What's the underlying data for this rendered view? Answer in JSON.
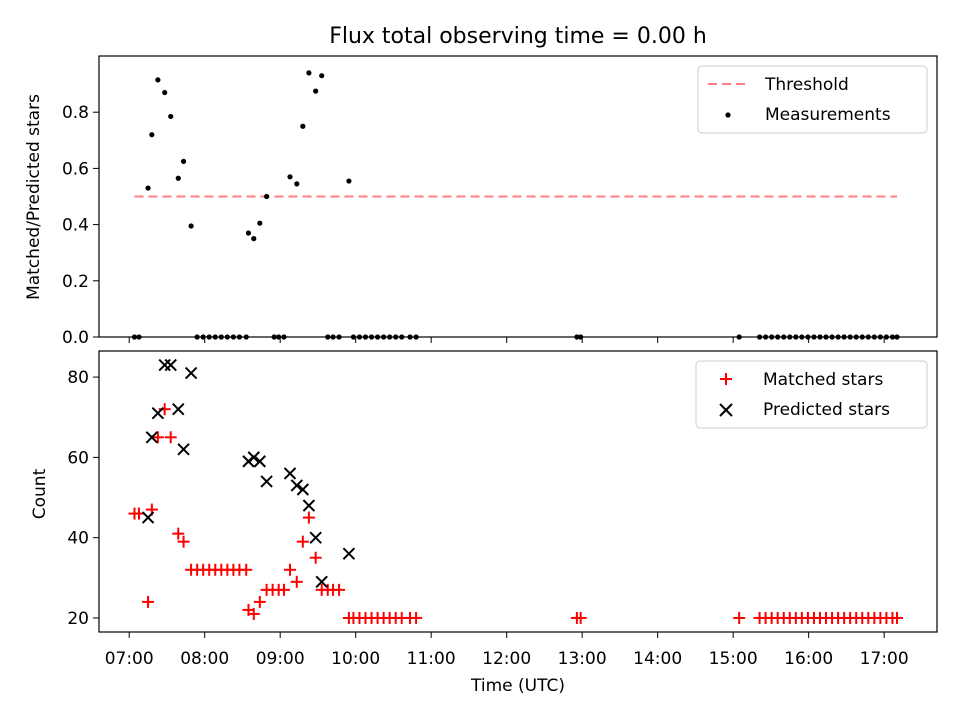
{
  "title": "Flux total observing time = 0.00 h",
  "xlabel": "Time (UTC)",
  "x_ticks": [
    "07:00",
    "08:00",
    "09:00",
    "10:00",
    "11:00",
    "12:00",
    "13:00",
    "14:00",
    "15:00",
    "16:00",
    "17:00"
  ],
  "x_tick_hours": [
    7,
    8,
    9,
    10,
    11,
    12,
    13,
    14,
    15,
    16,
    17
  ],
  "colors": {
    "threshold": "#ff7f7f",
    "measurements": "#000000",
    "matched": "#ff0000",
    "predicted": "#000000"
  },
  "chart_data": [
    {
      "type": "scatter",
      "ylabel": "Matched/Predicted stars",
      "ylim": [
        0,
        1.0
      ],
      "y_ticks": [
        "0.0",
        "0.2",
        "0.4",
        "0.6",
        "0.8"
      ],
      "y_tick_values": [
        0,
        0.2,
        0.4,
        0.6,
        0.8
      ],
      "legend_position": "top-right",
      "threshold": {
        "name": "Threshold",
        "value": 0.5,
        "x_range": [
          7.07,
          17.17
        ]
      },
      "series": [
        {
          "name": "Measurements",
          "marker": "dot",
          "points": [
            [
              7.07,
              0
            ],
            [
              7.13,
              0
            ],
            [
              7.25,
              0.53
            ],
            [
              7.3,
              0.72
            ],
            [
              7.38,
              0.915
            ],
            [
              7.47,
              0.87
            ],
            [
              7.55,
              0.785
            ],
            [
              7.65,
              0.565
            ],
            [
              7.72,
              0.625
            ],
            [
              7.82,
              0.395
            ],
            [
              7.9,
              0
            ],
            [
              7.98,
              0
            ],
            [
              8.06,
              0
            ],
            [
              8.14,
              0
            ],
            [
              8.22,
              0
            ],
            [
              8.3,
              0
            ],
            [
              8.38,
              0
            ],
            [
              8.46,
              0
            ],
            [
              8.55,
              0
            ],
            [
              8.58,
              0.37
            ],
            [
              8.65,
              0.35
            ],
            [
              8.73,
              0.405
            ],
            [
              8.82,
              0.5
            ],
            [
              8.92,
              0
            ],
            [
              8.98,
              0
            ],
            [
              9.05,
              0
            ],
            [
              9.13,
              0.57
            ],
            [
              9.22,
              0.545
            ],
            [
              9.3,
              0.75
            ],
            [
              9.38,
              0.94
            ],
            [
              9.47,
              0.875
            ],
            [
              9.55,
              0.93
            ],
            [
              9.63,
              0
            ],
            [
              9.7,
              0
            ],
            [
              9.78,
              0
            ],
            [
              9.91,
              0.555
            ],
            [
              9.97,
              0
            ],
            [
              10.05,
              0
            ],
            [
              10.13,
              0
            ],
            [
              10.21,
              0
            ],
            [
              10.29,
              0
            ],
            [
              10.37,
              0
            ],
            [
              10.45,
              0
            ],
            [
              10.53,
              0
            ],
            [
              10.61,
              0
            ],
            [
              10.72,
              0
            ],
            [
              10.8,
              0
            ],
            [
              12.93,
              0
            ],
            [
              12.98,
              0
            ],
            [
              15.08,
              0
            ],
            [
              15.35,
              0
            ],
            [
              15.43,
              0
            ],
            [
              15.51,
              0
            ],
            [
              15.59,
              0
            ],
            [
              15.67,
              0
            ],
            [
              15.75,
              0
            ],
            [
              15.83,
              0
            ],
            [
              15.91,
              0
            ],
            [
              15.99,
              0
            ],
            [
              16.07,
              0
            ],
            [
              16.15,
              0
            ],
            [
              16.23,
              0
            ],
            [
              16.31,
              0
            ],
            [
              16.39,
              0
            ],
            [
              16.47,
              0
            ],
            [
              16.55,
              0
            ],
            [
              16.63,
              0
            ],
            [
              16.71,
              0
            ],
            [
              16.79,
              0
            ],
            [
              16.87,
              0
            ],
            [
              16.95,
              0
            ],
            [
              17.03,
              0
            ],
            [
              17.11,
              0
            ],
            [
              17.17,
              0
            ]
          ]
        }
      ]
    },
    {
      "type": "scatter",
      "ylabel": "Count",
      "ylim": [
        16.5,
        86.5
      ],
      "y_ticks": [
        "20",
        "40",
        "60",
        "80"
      ],
      "y_tick_values": [
        20,
        40,
        60,
        80
      ],
      "legend_position": "top-right",
      "series": [
        {
          "name": "Matched stars",
          "marker": "plus",
          "points": [
            [
              7.07,
              46
            ],
            [
              7.13,
              46
            ],
            [
              7.25,
              24
            ],
            [
              7.3,
              47
            ],
            [
              7.38,
              65
            ],
            [
              7.47,
              72
            ],
            [
              7.55,
              65
            ],
            [
              7.65,
              41
            ],
            [
              7.72,
              39
            ],
            [
              7.82,
              32
            ],
            [
              7.9,
              32
            ],
            [
              7.98,
              32
            ],
            [
              8.06,
              32
            ],
            [
              8.14,
              32
            ],
            [
              8.22,
              32
            ],
            [
              8.3,
              32
            ],
            [
              8.38,
              32
            ],
            [
              8.46,
              32
            ],
            [
              8.55,
              32
            ],
            [
              8.58,
              22
            ],
            [
              8.65,
              21
            ],
            [
              8.73,
              24
            ],
            [
              8.82,
              27
            ],
            [
              8.9,
              27
            ],
            [
              8.98,
              27
            ],
            [
              9.05,
              27
            ],
            [
              9.13,
              32
            ],
            [
              9.22,
              29
            ],
            [
              9.3,
              39
            ],
            [
              9.38,
              45
            ],
            [
              9.47,
              35
            ],
            [
              9.55,
              27
            ],
            [
              9.63,
              27
            ],
            [
              9.7,
              27
            ],
            [
              9.78,
              27
            ],
            [
              9.91,
              20
            ],
            [
              9.97,
              20
            ],
            [
              10.05,
              20
            ],
            [
              10.13,
              20
            ],
            [
              10.21,
              20
            ],
            [
              10.29,
              20
            ],
            [
              10.37,
              20
            ],
            [
              10.45,
              20
            ],
            [
              10.53,
              20
            ],
            [
              10.61,
              20
            ],
            [
              10.72,
              20
            ],
            [
              10.8,
              20
            ],
            [
              12.93,
              20
            ],
            [
              12.98,
              20
            ],
            [
              15.08,
              20
            ],
            [
              15.35,
              20
            ],
            [
              15.43,
              20
            ],
            [
              15.51,
              20
            ],
            [
              15.59,
              20
            ],
            [
              15.67,
              20
            ],
            [
              15.75,
              20
            ],
            [
              15.83,
              20
            ],
            [
              15.91,
              20
            ],
            [
              15.99,
              20
            ],
            [
              16.07,
              20
            ],
            [
              16.15,
              20
            ],
            [
              16.23,
              20
            ],
            [
              16.31,
              20
            ],
            [
              16.39,
              20
            ],
            [
              16.47,
              20
            ],
            [
              16.55,
              20
            ],
            [
              16.63,
              20
            ],
            [
              16.71,
              20
            ],
            [
              16.79,
              20
            ],
            [
              16.87,
              20
            ],
            [
              16.95,
              20
            ],
            [
              17.03,
              20
            ],
            [
              17.11,
              20
            ],
            [
              17.17,
              20
            ]
          ]
        },
        {
          "name": "Predicted stars",
          "marker": "x",
          "points": [
            [
              7.25,
              45
            ],
            [
              7.3,
              65
            ],
            [
              7.38,
              71
            ],
            [
              7.47,
              83
            ],
            [
              7.55,
              83
            ],
            [
              7.65,
              72
            ],
            [
              7.72,
              62
            ],
            [
              7.82,
              81
            ],
            [
              8.58,
              59
            ],
            [
              8.65,
              60
            ],
            [
              8.73,
              59
            ],
            [
              8.82,
              54
            ],
            [
              9.13,
              56
            ],
            [
              9.22,
              53
            ],
            [
              9.3,
              52
            ],
            [
              9.38,
              48
            ],
            [
              9.47,
              40
            ],
            [
              9.55,
              29
            ],
            [
              9.91,
              36
            ]
          ]
        }
      ]
    }
  ]
}
